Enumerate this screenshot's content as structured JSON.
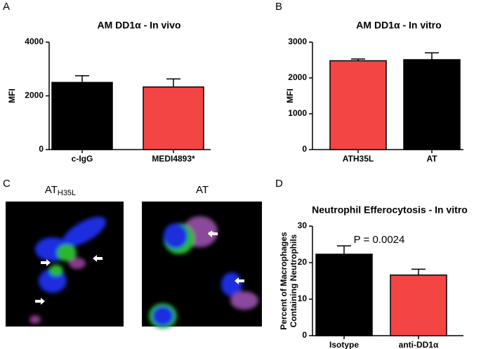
{
  "chart_data": [
    {
      "type": "bar",
      "panel": "A",
      "title": "AM DD1α - In vivo",
      "ylabel": [
        "MFI"
      ],
      "categories": [
        "c-IgG",
        "MEDI4893*"
      ],
      "values": [
        2500,
        2330
      ],
      "errors": [
        250,
        300
      ],
      "colors": [
        "#000000",
        "#f44545"
      ],
      "ylim": [
        0,
        4000
      ],
      "yticks": [
        0,
        2000,
        4000
      ]
    },
    {
      "type": "bar",
      "panel": "B",
      "title": "AM DD1α - In vitro",
      "ylabel": [
        "MFI"
      ],
      "categories": [
        "ATH35L",
        "AT"
      ],
      "values": [
        2480,
        2510
      ],
      "errors": [
        50,
        190
      ],
      "colors": [
        "#f44545",
        "#000000"
      ],
      "ylim": [
        0,
        3000
      ],
      "yticks": [
        0,
        1000,
        2000,
        3000
      ]
    },
    {
      "type": "bar",
      "panel": "D",
      "title": "Neutrophil Efferocytosis - In vitro",
      "ylabel": [
        "Percent of Macrophages",
        "Containing Neutrophils"
      ],
      "annotation": "P = 0.0024",
      "categories": [
        "Isotype",
        "anti-DD1α"
      ],
      "values": [
        22.3,
        16.6
      ],
      "errors": [
        2.3,
        1.6
      ],
      "colors": [
        "#000000",
        "#f44545"
      ],
      "ylim": [
        0,
        30
      ],
      "yticks": [
        0,
        10,
        20,
        30
      ]
    }
  ],
  "images": {
    "panel": "C",
    "labels": [
      {
        "text": "AT",
        "sub": "H35L"
      },
      {
        "text": "AT"
      }
    ]
  }
}
